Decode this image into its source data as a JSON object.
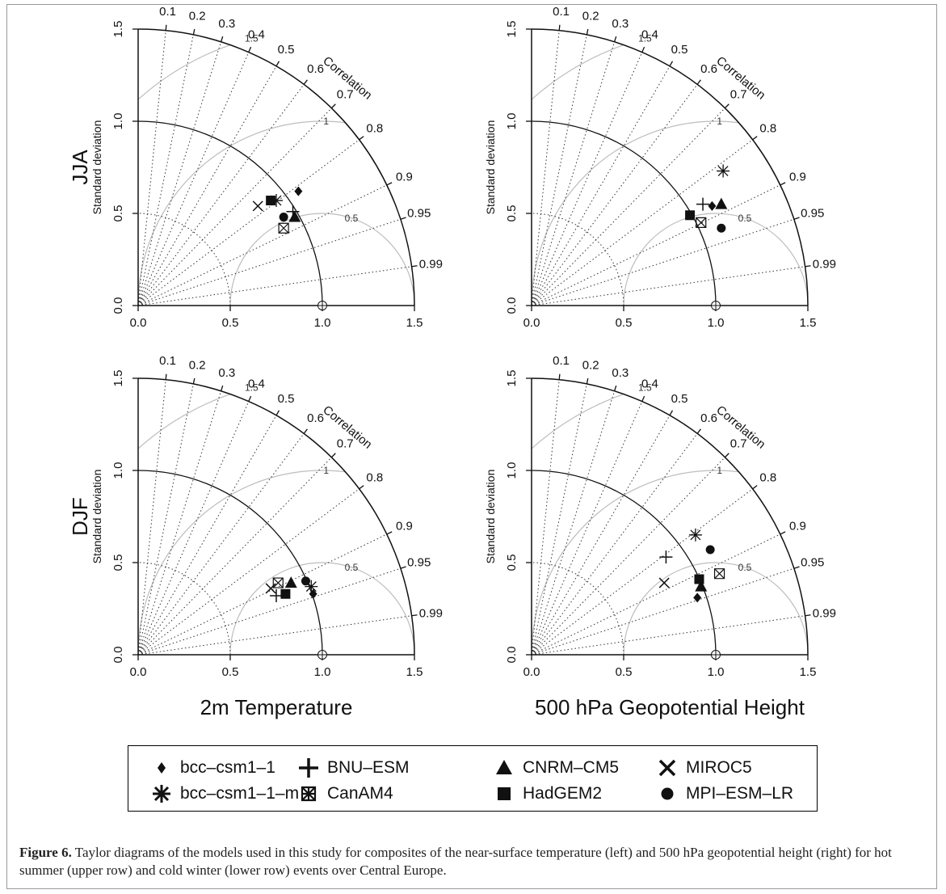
{
  "caption": {
    "figure_label": "Figure 6.",
    "text": " Taylor diagrams of the models used in this study for composites of the near-surface temperature (left) and 500 hPa geopotential height (right) for hot summer (upper row) and cold winter (lower row) events over Central Europe."
  },
  "legend": {
    "items": [
      {
        "name": "bcc–csm1–1",
        "symbol": "diamond"
      },
      {
        "name": "bcc–csm1–1–m",
        "symbol": "asterisk"
      },
      {
        "name": "BNU–ESM",
        "symbol": "plus"
      },
      {
        "name": "CanAM4",
        "symbol": "boxcross"
      },
      {
        "name": "CNRM–CM5",
        "symbol": "triangle"
      },
      {
        "name": "HadGEM2",
        "symbol": "square"
      },
      {
        "name": "MIROC5",
        "symbol": "cross"
      },
      {
        "name": "MPI–ESM–LR",
        "symbol": "circle"
      }
    ]
  },
  "chart_data": [
    {
      "type": "scatter",
      "diagram": "taylor",
      "row_label": "JJA",
      "column_label": "",
      "ylabel": "Standard deviation",
      "corr_label": "Correlation",
      "xlim": [
        0,
        1.5
      ],
      "ylim": [
        0,
        1.5
      ],
      "ticks": [
        "0.0",
        "0.5",
        "1.0",
        "1.5"
      ],
      "correlation_ticks": [
        "0.1",
        "0.2",
        "0.3",
        "0.4",
        "0.5",
        "0.6",
        "0.7",
        "0.8",
        "0.9",
        "0.95",
        "0.99"
      ],
      "rms_labels": [
        "0.5",
        "1",
        "1.5"
      ],
      "points": [
        {
          "model": "bcc–csm1–1",
          "x": 0.87,
          "y": 0.62
        },
        {
          "model": "bcc–csm1–1–m",
          "x": 0.75,
          "y": 0.57
        },
        {
          "model": "BNU–ESM",
          "x": 0.84,
          "y": 0.51
        },
        {
          "model": "CanAM4",
          "x": 0.79,
          "y": 0.42
        },
        {
          "model": "CNRM–CM5",
          "x": 0.85,
          "y": 0.48
        },
        {
          "model": "HadGEM2",
          "x": 0.72,
          "y": 0.57
        },
        {
          "model": "MIROC5",
          "x": 0.65,
          "y": 0.54
        },
        {
          "model": "MPI–ESM–LR",
          "x": 0.79,
          "y": 0.48
        }
      ]
    },
    {
      "type": "scatter",
      "diagram": "taylor",
      "row_label": "",
      "column_label": "",
      "ylabel": "Standard deviation",
      "corr_label": "Correlation",
      "xlim": [
        0,
        1.5
      ],
      "ylim": [
        0,
        1.5
      ],
      "ticks": [
        "0.0",
        "0.5",
        "1.0",
        "1.5"
      ],
      "correlation_ticks": [
        "0.1",
        "0.2",
        "0.3",
        "0.4",
        "0.5",
        "0.6",
        "0.7",
        "0.8",
        "0.9",
        "0.95",
        "0.99"
      ],
      "rms_labels": [
        "0.5",
        "1",
        "1.5"
      ],
      "points": [
        {
          "model": "bcc–csm1–1",
          "x": 0.98,
          "y": 0.54
        },
        {
          "model": "bcc–csm1–1–m",
          "x": 1.04,
          "y": 0.73
        },
        {
          "model": "BNU–ESM",
          "x": 0.93,
          "y": 0.55
        },
        {
          "model": "CanAM4",
          "x": 0.92,
          "y": 0.45
        },
        {
          "model": "CNRM–CM5",
          "x": 1.03,
          "y": 0.55
        },
        {
          "model": "HadGEM2",
          "x": 0.86,
          "y": 0.49
        },
        {
          "model": "MIROC5",
          "x": null,
          "y": null
        },
        {
          "model": "MPI–ESM–LR",
          "x": 1.03,
          "y": 0.42
        }
      ]
    },
    {
      "type": "scatter",
      "diagram": "taylor",
      "row_label": "DJF",
      "column_label": "2m Temperature",
      "ylabel": "Standard deviation",
      "corr_label": "Correlation",
      "xlim": [
        0,
        1.5
      ],
      "ylim": [
        0,
        1.5
      ],
      "ticks": [
        "0.0",
        "0.5",
        "1.0",
        "1.5"
      ],
      "correlation_ticks": [
        "0.1",
        "0.2",
        "0.3",
        "0.4",
        "0.5",
        "0.6",
        "0.7",
        "0.8",
        "0.9",
        "0.95",
        "0.99"
      ],
      "rms_labels": [
        "0.5",
        "1",
        "1.5"
      ],
      "points": [
        {
          "model": "bcc–csm1–1",
          "x": 0.95,
          "y": 0.33
        },
        {
          "model": "bcc–csm1–1–m",
          "x": 0.94,
          "y": 0.37
        },
        {
          "model": "BNU–ESM",
          "x": 0.75,
          "y": 0.32
        },
        {
          "model": "CanAM4",
          "x": 0.76,
          "y": 0.39
        },
        {
          "model": "CNRM–CM5",
          "x": 0.83,
          "y": 0.39
        },
        {
          "model": "HadGEM2",
          "x": 0.8,
          "y": 0.33
        },
        {
          "model": "MIROC5",
          "x": 0.72,
          "y": 0.36
        },
        {
          "model": "MPI–ESM–LR",
          "x": 0.91,
          "y": 0.4
        }
      ]
    },
    {
      "type": "scatter",
      "diagram": "taylor",
      "row_label": "",
      "column_label": "500 hPa Geopotential Height",
      "ylabel": "Standard deviation",
      "corr_label": "Correlation",
      "xlim": [
        0,
        1.5
      ],
      "ylim": [
        0,
        1.5
      ],
      "ticks": [
        "0.0",
        "0.5",
        "1.0",
        "1.5"
      ],
      "correlation_ticks": [
        "0.1",
        "0.2",
        "0.3",
        "0.4",
        "0.5",
        "0.6",
        "0.7",
        "0.8",
        "0.9",
        "0.95",
        "0.99"
      ],
      "rms_labels": [
        "0.5",
        "1",
        "1.5"
      ],
      "points": [
        {
          "model": "bcc–csm1–1",
          "x": 0.9,
          "y": 0.31
        },
        {
          "model": "bcc–csm1–1–m",
          "x": 0.89,
          "y": 0.65
        },
        {
          "model": "BNU–ESM",
          "x": 0.73,
          "y": 0.53
        },
        {
          "model": "CanAM4",
          "x": 1.02,
          "y": 0.44
        },
        {
          "model": "CNRM–CM5",
          "x": 0.92,
          "y": 0.37
        },
        {
          "model": "HadGEM2",
          "x": 0.91,
          "y": 0.41
        },
        {
          "model": "MIROC5",
          "x": 0.72,
          "y": 0.39
        },
        {
          "model": "MPI–ESM–LR",
          "x": 0.97,
          "y": 0.57
        }
      ]
    }
  ]
}
